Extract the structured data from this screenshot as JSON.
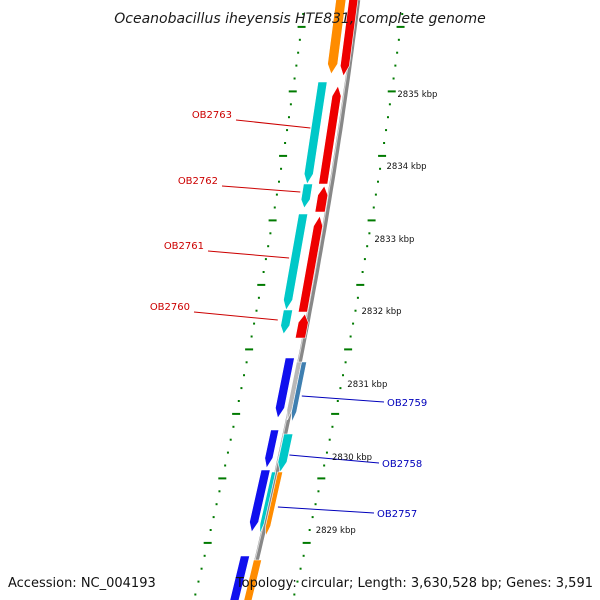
{
  "title": "Oceanobacillus iheyensis HTE831, complete genome",
  "accession": "Accession: NC_004193",
  "topology": "Topology: circular; Length: 3,630,528 bp; Genes: 3,591",
  "colors": {
    "backbone": "#888888",
    "tick": "#007a00",
    "red": "#ee0000",
    "cyan": "#00c8c8",
    "blue": "#1010ee",
    "orange": "#ff8c00",
    "steel": "#3f7fb0",
    "gray": "#b8b8b8",
    "label_red": "#cc0000",
    "label_blue": "#0000bb"
  },
  "scale_labels": [
    "2835 kbp",
    "2834 kbp",
    "2833 kbp",
    "2832 kbp",
    "2831 kbp",
    "2830 kbp",
    "2829 kbp"
  ],
  "gene_labels_left": [
    "OB2763",
    "OB2762",
    "OB2761",
    "OB2760"
  ],
  "gene_labels_right": [
    "OB2759",
    "OB2758",
    "OB2757"
  ]
}
